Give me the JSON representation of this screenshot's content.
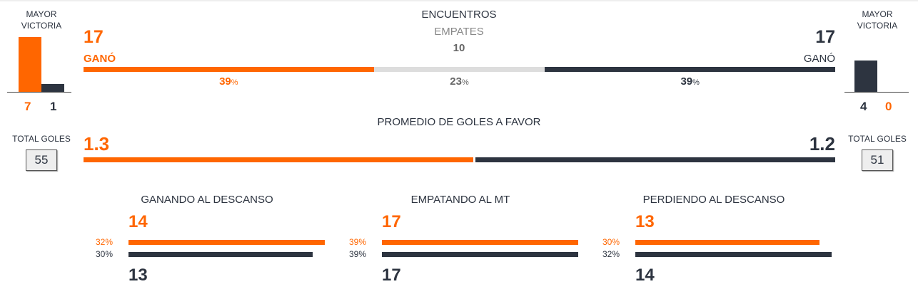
{
  "unit": "%",
  "left": {
    "label": "MAYOR VICTORIA",
    "biggest_win": {
      "home": 7,
      "away": 1
    },
    "total_label": "TOTAL GOLES",
    "total_goals": 55
  },
  "right": {
    "label": "MAYOR VICTORIA",
    "biggest_win": {
      "away": 4,
      "home": 0
    },
    "total_label": "TOTAL GOLES",
    "total_goals": 51
  },
  "matches": {
    "title": "ENCUENTROS",
    "home_wins": 17,
    "home_label": "GANÓ",
    "home_pct": 39,
    "draws_label": "EMPATES",
    "draws": 10,
    "draws_pct": 23,
    "away_wins": 17,
    "away_label": "GANÓ",
    "away_pct": 39
  },
  "avg_goals": {
    "title": "PROMEDIO DE GOLES A FAVOR",
    "home": 1.3,
    "away": 1.2
  },
  "halftime": [
    {
      "title": "GANANDO AL DESCANSO",
      "home": 14,
      "home_pct": 32,
      "away": 13,
      "away_pct": 30
    },
    {
      "title": "EMPATANDO AL MT",
      "home": 17,
      "home_pct": 39,
      "away": 17,
      "away_pct": 39
    },
    {
      "title": "PERDIENDO AL DESCANSO",
      "home": 13,
      "home_pct": 30,
      "away": 14,
      "away_pct": 32
    }
  ]
}
